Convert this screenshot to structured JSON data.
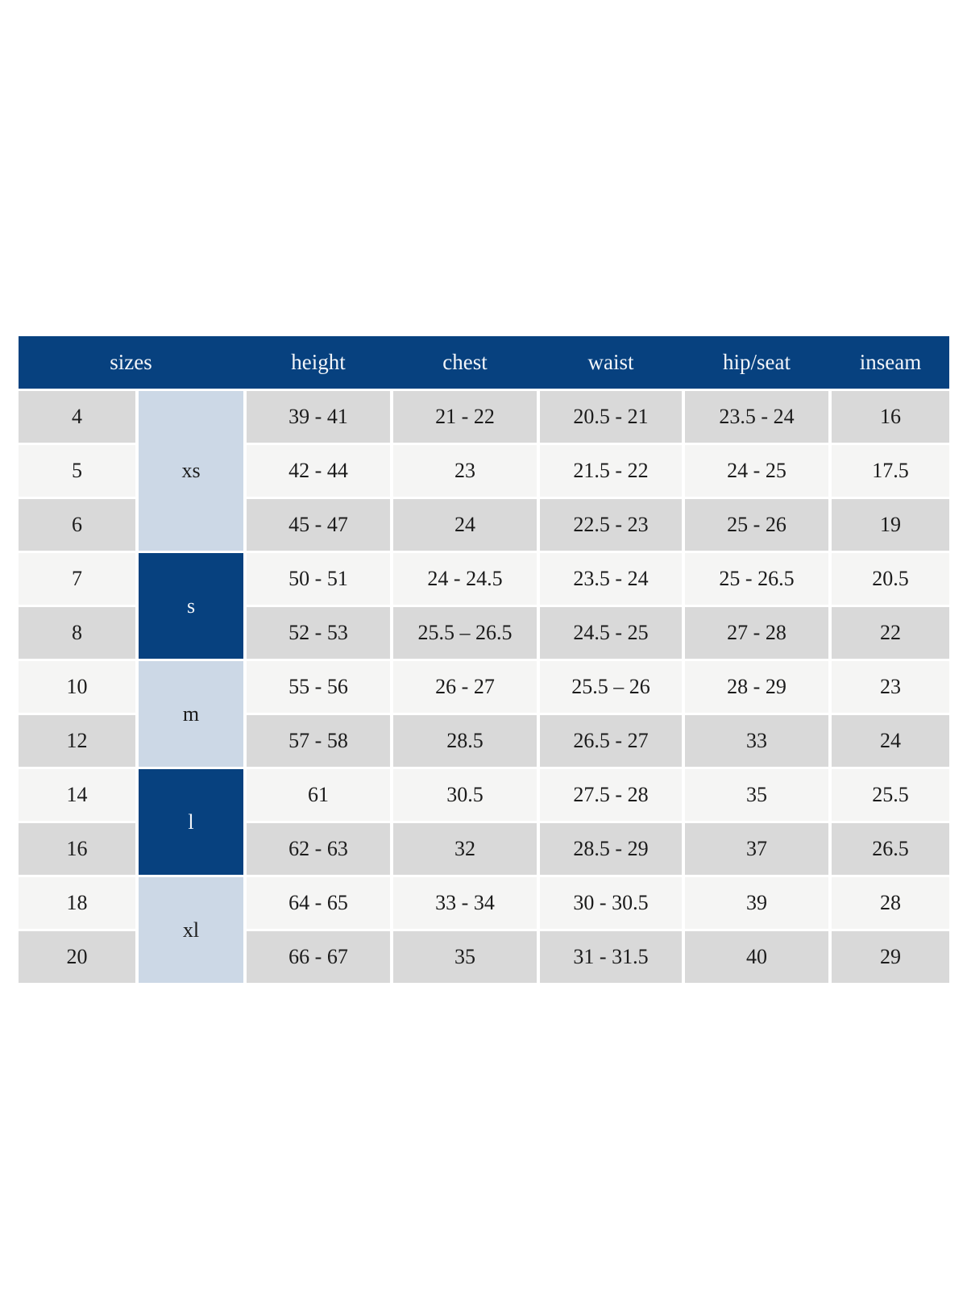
{
  "colors": {
    "header_bg": "#07417f",
    "header_text": "#f2f5f9",
    "group_dark_bg": "#07417f",
    "group_light_bg": "#ccd8e6",
    "row_gray_bg": "#d9d9d9",
    "row_light_bg": "#f5f5f4",
    "cell_text": "#1b1b1b",
    "grid_gap": "#ffffff"
  },
  "chart_data": {
    "type": "table",
    "title": "",
    "header": [
      {
        "label": "sizes",
        "span": 2
      },
      {
        "label": "height",
        "span": 1
      },
      {
        "label": "chest",
        "span": 1
      },
      {
        "label": "waist",
        "span": 1
      },
      {
        "label": "hip/seat",
        "span": 1
      },
      {
        "label": "inseam",
        "span": 1
      }
    ],
    "groups": [
      {
        "label": "xs",
        "row_count": 3,
        "style": "light"
      },
      {
        "label": "s",
        "row_count": 2,
        "style": "dark"
      },
      {
        "label": "m",
        "row_count": 2,
        "style": "light"
      },
      {
        "label": "l",
        "row_count": 2,
        "style": "dark"
      },
      {
        "label": "xl",
        "row_count": 2,
        "style": "light"
      }
    ],
    "rows": [
      {
        "size": "4",
        "group": "xs",
        "height": "39 - 41",
        "chest": "21 - 22",
        "waist": "20.5 - 21",
        "hip_seat": "23.5 - 24",
        "inseam": "16"
      },
      {
        "size": "5",
        "group": "xs",
        "height": "42 - 44",
        "chest": "23",
        "waist": "21.5 - 22",
        "hip_seat": "24 - 25",
        "inseam": "17.5"
      },
      {
        "size": "6",
        "group": "xs",
        "height": "45 - 47",
        "chest": "24",
        "waist": "22.5 - 23",
        "hip_seat": "25 - 26",
        "inseam": "19"
      },
      {
        "size": "7",
        "group": "s",
        "height": "50 - 51",
        "chest": "24 - 24.5",
        "waist": "23.5 - 24",
        "hip_seat": "25 - 26.5",
        "inseam": "20.5"
      },
      {
        "size": "8",
        "group": "s",
        "height": "52 - 53",
        "chest": "25.5 – 26.5",
        "waist": "24.5 - 25",
        "hip_seat": "27 - 28",
        "inseam": "22"
      },
      {
        "size": "10",
        "group": "m",
        "height": "55 - 56",
        "chest": "26 - 27",
        "waist": "25.5 – 26",
        "hip_seat": "28 - 29",
        "inseam": "23"
      },
      {
        "size": "12",
        "group": "m",
        "height": "57 - 58",
        "chest": "28.5",
        "waist": "26.5 - 27",
        "hip_seat": "33",
        "inseam": "24"
      },
      {
        "size": "14",
        "group": "l",
        "height": "61",
        "chest": "30.5",
        "waist": "27.5 - 28",
        "hip_seat": "35",
        "inseam": "25.5"
      },
      {
        "size": "16",
        "group": "l",
        "height": "62 - 63",
        "chest": "32",
        "waist": "28.5 - 29",
        "hip_seat": "37",
        "inseam": "26.5"
      },
      {
        "size": "18",
        "group": "xl",
        "height": "64 - 65",
        "chest": "33 - 34",
        "waist": "30 - 30.5",
        "hip_seat": "39",
        "inseam": "28"
      },
      {
        "size": "20",
        "group": "xl",
        "height": "66 - 67",
        "chest": "35",
        "waist": "31 - 31.5",
        "hip_seat": "40",
        "inseam": "29"
      }
    ]
  }
}
